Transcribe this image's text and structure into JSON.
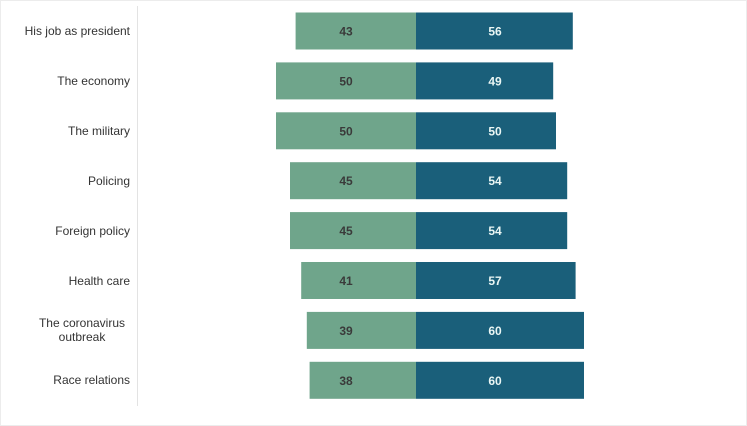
{
  "chart_data": {
    "type": "bar",
    "orientation": "horizontal-diverging",
    "categories": [
      "His job as president",
      "The economy",
      "The military",
      "Policing",
      "Foreign policy",
      "Health care",
      "The coronavirus outbreak",
      "Race relations"
    ],
    "series": [
      {
        "values": [
          43,
          50,
          50,
          45,
          45,
          41,
          39,
          38
        ],
        "color": "#6fa58b",
        "label_color": "#3a3a3a",
        "direction": "left"
      },
      {
        "values": [
          56,
          49,
          50,
          54,
          54,
          57,
          60,
          60
        ],
        "color": "#1a5f7a",
        "label_color": "#e9f6f4",
        "direction": "right"
      }
    ],
    "title": "",
    "xlabel": "",
    "ylabel": "",
    "grid": false
  }
}
